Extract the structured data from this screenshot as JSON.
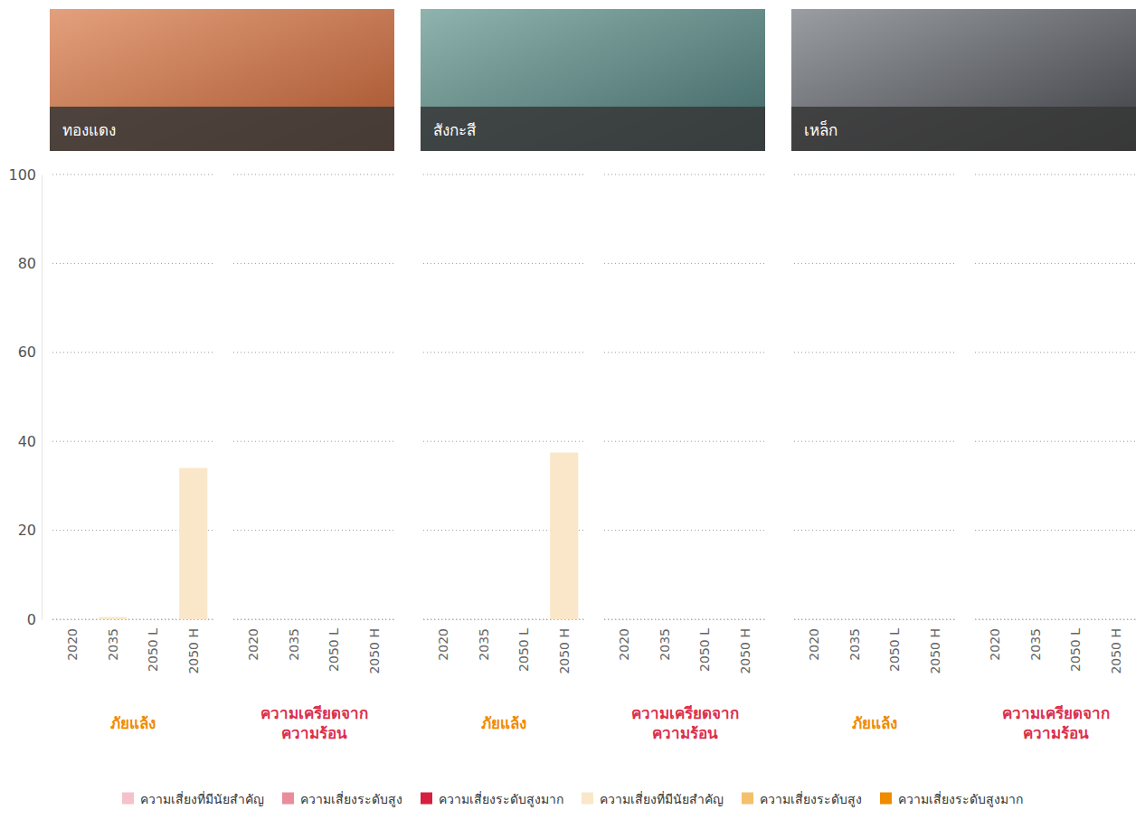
{
  "chart_data": {
    "type": "bar",
    "stacked": true,
    "grid": true,
    "legend": "bottom",
    "ylim": [
      0,
      100
    ],
    "yticks": [
      0,
      20,
      40,
      60,
      80,
      100
    ],
    "series": [
      {
        "name": "ความเสี่ยงที่มีนัยสำคัญ",
        "color": "#f5c2ca"
      },
      {
        "name": "ความเสี่ยงระดับสูง",
        "color": "#e98d9b"
      },
      {
        "name": "ความเสี่ยงระดับสูงมาก",
        "color": "#d6203f"
      },
      {
        "name": "ความเสี่ยงที่มีนัยสำคัญ",
        "color": "#fae7c9"
      },
      {
        "name": "ความเสี่ยงระดับสูง",
        "color": "#f4c06c"
      },
      {
        "name": "ความเสี่ยงระดับสูงมาก",
        "color": "#f08a00"
      }
    ],
    "panels": [
      {
        "title": "ทองแดง",
        "groups": [
          {
            "label": "ภัยแล้ง",
            "color": "#f08a00",
            "categories": [
              "2020",
              "2035",
              "2050 L",
              "2050 H"
            ],
            "series": [
              {
                "color": "#fae7c9",
                "values": [
                  0,
                  0.5,
                  0,
                  34
                ]
              },
              {
                "color": "#f4c06c",
                "values": [
                  0,
                  0,
                  0,
                  0
                ]
              },
              {
                "color": "#f08a00",
                "values": [
                  0,
                  0,
                  0,
                  0
                ]
              }
            ]
          },
          {
            "label": "ความเครียดจากความร้อน",
            "color": "#dc2f4c",
            "categories": [
              "2020",
              "2035",
              "2050 L",
              "2050 H"
            ],
            "series": [
              {
                "color": "#f5c2ca",
                "values": [
                  0,
                  0,
                  0,
                  0
                ]
              },
              {
                "color": "#e98d9b",
                "values": [
                  0,
                  0,
                  0,
                  0
                ]
              },
              {
                "color": "#d6203f",
                "values": [
                  0,
                  0,
                  0,
                  0
                ]
              }
            ]
          }
        ]
      },
      {
        "title": "สังกะสี",
        "groups": [
          {
            "label": "ภัยแล้ง",
            "color": "#f08a00",
            "categories": [
              "2020",
              "2035",
              "2050 L",
              "2050 H"
            ],
            "series": [
              {
                "color": "#fae7c9",
                "values": [
                  0,
                  0,
                  0,
                  37.5
                ]
              },
              {
                "color": "#f4c06c",
                "values": [
                  0,
                  0,
                  0,
                  0
                ]
              },
              {
                "color": "#f08a00",
                "values": [
                  0,
                  0,
                  0,
                  0
                ]
              }
            ]
          },
          {
            "label": "ความเครียดจากความร้อน",
            "color": "#dc2f4c",
            "categories": [
              "2020",
              "2035",
              "2050 L",
              "2050 H"
            ],
            "series": [
              {
                "color": "#f5c2ca",
                "values": [
                  0,
                  0,
                  0,
                  0
                ]
              },
              {
                "color": "#e98d9b",
                "values": [
                  0,
                  0,
                  0,
                  0
                ]
              },
              {
                "color": "#d6203f",
                "values": [
                  0,
                  0,
                  0,
                  0
                ]
              }
            ]
          }
        ]
      },
      {
        "title": "เหล็ก",
        "groups": [
          {
            "label": "ภัยแล้ง",
            "color": "#f08a00",
            "categories": [
              "2020",
              "2035",
              "2050 L",
              "2050 H"
            ],
            "series": [
              {
                "color": "#fae7c9",
                "values": [
                  0,
                  0,
                  0,
                  0
                ]
              },
              {
                "color": "#f4c06c",
                "values": [
                  0,
                  0,
                  0,
                  0
                ]
              },
              {
                "color": "#f08a00",
                "values": [
                  0,
                  0,
                  0,
                  0
                ]
              }
            ]
          },
          {
            "label": "ความเครียดจากความร้อน",
            "color": "#dc2f4c",
            "categories": [
              "2020",
              "2035",
              "2050 L",
              "2050 H"
            ],
            "series": [
              {
                "color": "#f5c2ca",
                "values": [
                  0,
                  0,
                  0,
                  0
                ]
              },
              {
                "color": "#e98d9b",
                "values": [
                  0,
                  0,
                  0,
                  0
                ]
              },
              {
                "color": "#d6203f",
                "values": [
                  0,
                  0,
                  0,
                  0
                ]
              }
            ]
          }
        ]
      }
    ]
  }
}
